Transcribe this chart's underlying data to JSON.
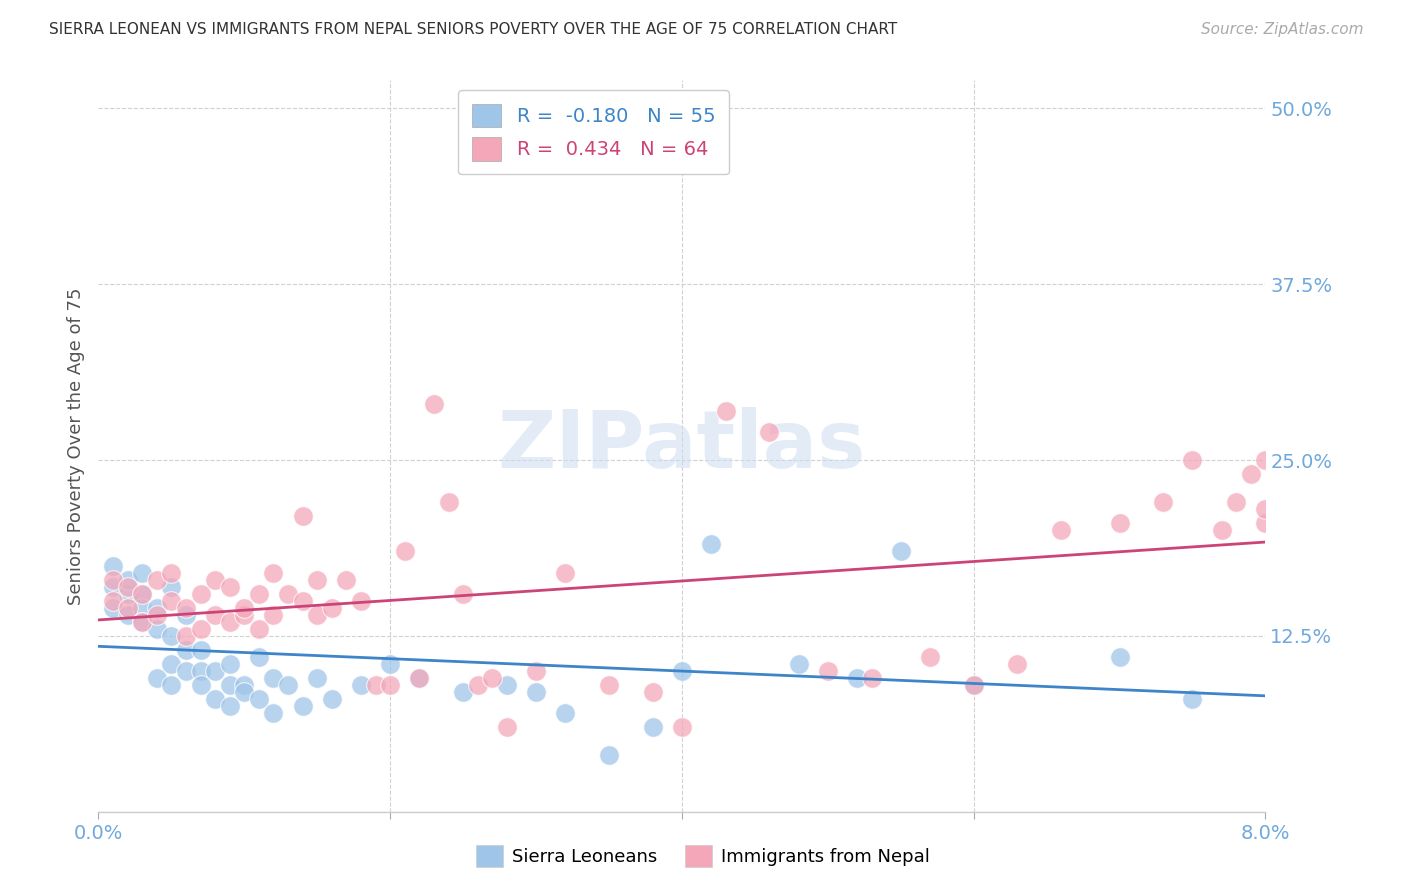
{
  "title": "SIERRA LEONEAN VS IMMIGRANTS FROM NEPAL SENIORS POVERTY OVER THE AGE OF 75 CORRELATION CHART",
  "source": "Source: ZipAtlas.com",
  "ylabel": "Seniors Poverty Over the Age of 75",
  "xlim": [
    0.0,
    0.08
  ],
  "ylim": [
    0.0,
    0.52
  ],
  "xticks": [
    0.0,
    0.02,
    0.04,
    0.06,
    0.08
  ],
  "xticklabels_show": [
    "0.0%",
    "",
    "",
    "",
    "8.0%"
  ],
  "yticks": [
    0.0,
    0.125,
    0.25,
    0.375,
    0.5
  ],
  "yticklabels": [
    "",
    "12.5%",
    "25.0%",
    "37.5%",
    "50.0%"
  ],
  "blue_color": "#9fc5e8",
  "pink_color": "#f4a7b9",
  "blue_line_color": "#3d85c8",
  "pink_line_color": "#cc4477",
  "tick_color": "#6fa8dc",
  "legend_r_blue": "-0.180",
  "legend_n_blue": "55",
  "legend_r_pink": "0.434",
  "legend_n_pink": "64",
  "blue_x": [
    0.001,
    0.001,
    0.001,
    0.002,
    0.002,
    0.002,
    0.003,
    0.003,
    0.003,
    0.003,
    0.004,
    0.004,
    0.004,
    0.005,
    0.005,
    0.005,
    0.005,
    0.006,
    0.006,
    0.006,
    0.007,
    0.007,
    0.007,
    0.008,
    0.008,
    0.009,
    0.009,
    0.009,
    0.01,
    0.01,
    0.011,
    0.011,
    0.012,
    0.012,
    0.013,
    0.014,
    0.015,
    0.016,
    0.018,
    0.02,
    0.022,
    0.025,
    0.028,
    0.03,
    0.032,
    0.035,
    0.038,
    0.04,
    0.042,
    0.048,
    0.052,
    0.055,
    0.06,
    0.07,
    0.075
  ],
  "blue_y": [
    0.175,
    0.16,
    0.145,
    0.155,
    0.14,
    0.165,
    0.155,
    0.145,
    0.17,
    0.135,
    0.095,
    0.13,
    0.145,
    0.09,
    0.105,
    0.125,
    0.16,
    0.1,
    0.115,
    0.14,
    0.1,
    0.115,
    0.09,
    0.08,
    0.1,
    0.105,
    0.09,
    0.075,
    0.09,
    0.085,
    0.11,
    0.08,
    0.095,
    0.07,
    0.09,
    0.075,
    0.095,
    0.08,
    0.09,
    0.105,
    0.095,
    0.085,
    0.09,
    0.085,
    0.07,
    0.04,
    0.06,
    0.1,
    0.19,
    0.105,
    0.095,
    0.185,
    0.09,
    0.11,
    0.08
  ],
  "pink_x": [
    0.001,
    0.001,
    0.002,
    0.002,
    0.003,
    0.003,
    0.004,
    0.004,
    0.005,
    0.005,
    0.006,
    0.006,
    0.007,
    0.007,
    0.008,
    0.008,
    0.009,
    0.009,
    0.01,
    0.01,
    0.011,
    0.011,
    0.012,
    0.012,
    0.013,
    0.014,
    0.014,
    0.015,
    0.015,
    0.016,
    0.017,
    0.018,
    0.019,
    0.02,
    0.021,
    0.022,
    0.023,
    0.024,
    0.025,
    0.026,
    0.027,
    0.028,
    0.03,
    0.032,
    0.035,
    0.038,
    0.04,
    0.043,
    0.046,
    0.05,
    0.053,
    0.057,
    0.06,
    0.063,
    0.066,
    0.07,
    0.073,
    0.075,
    0.077,
    0.078,
    0.079,
    0.08,
    0.08,
    0.08
  ],
  "pink_y": [
    0.15,
    0.165,
    0.145,
    0.16,
    0.135,
    0.155,
    0.14,
    0.165,
    0.15,
    0.17,
    0.125,
    0.145,
    0.13,
    0.155,
    0.14,
    0.165,
    0.135,
    0.16,
    0.14,
    0.145,
    0.155,
    0.13,
    0.14,
    0.17,
    0.155,
    0.15,
    0.21,
    0.14,
    0.165,
    0.145,
    0.165,
    0.15,
    0.09,
    0.09,
    0.185,
    0.095,
    0.29,
    0.22,
    0.155,
    0.09,
    0.095,
    0.06,
    0.1,
    0.17,
    0.09,
    0.085,
    0.06,
    0.285,
    0.27,
    0.1,
    0.095,
    0.11,
    0.09,
    0.105,
    0.2,
    0.205,
    0.22,
    0.25,
    0.2,
    0.22,
    0.24,
    0.25,
    0.205,
    0.215
  ]
}
